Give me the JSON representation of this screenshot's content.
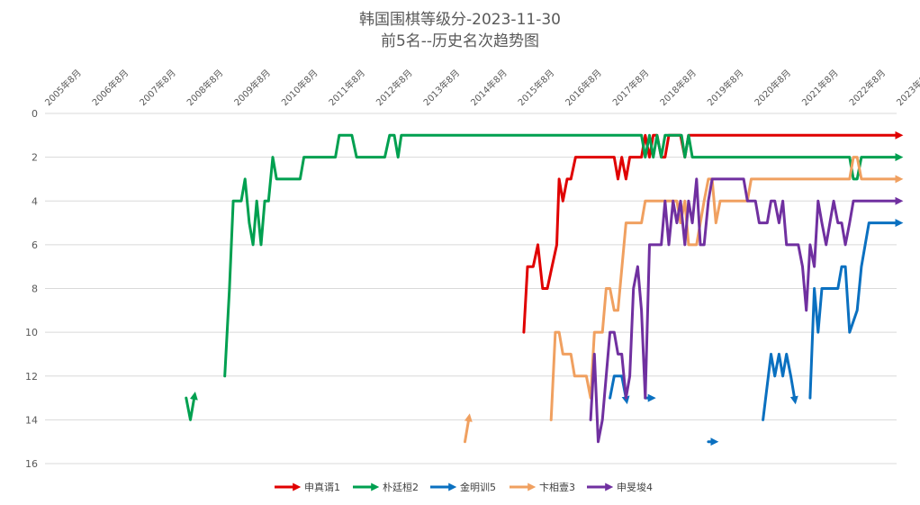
{
  "chart_data": {
    "type": "line",
    "title_line1": "韩国围棋等级分-2023-11-30",
    "title_line2": "前5名--历史名次趋势图",
    "x_ticks": [
      "2005年8月",
      "2006年8月",
      "2007年8月",
      "2008年8月",
      "2009年8月",
      "2010年8月",
      "2011年8月",
      "2012年8月",
      "2013年8月",
      "2014年8月",
      "2015年8月",
      "2016年8月",
      "2017年8月",
      "2018年8月",
      "2019年8月",
      "2020年8月",
      "2021年8月",
      "2022年8月",
      "2023年8月"
    ],
    "xlim": [
      2005.583,
      2023.667
    ],
    "y_ticks": [
      "0",
      "2",
      "4",
      "6",
      "8",
      "10",
      "12",
      "14",
      "16"
    ],
    "ylim": [
      0,
      16
    ],
    "y_reversed": true,
    "grid": true,
    "legend_position": "bottom",
    "series": [
      {
        "name": "申真谞1",
        "color": "#e00000",
        "segments": [
          [
            [
              2015.75,
              10
            ],
            [
              2015.83,
              7
            ],
            [
              2015.95,
              7
            ],
            [
              2016.05,
              6
            ],
            [
              2016.15,
              8
            ],
            [
              2016.25,
              8
            ],
            [
              2016.35,
              7
            ],
            [
              2016.45,
              6
            ],
            [
              2016.5,
              3
            ],
            [
              2016.58,
              4
            ],
            [
              2016.67,
              3
            ],
            [
              2016.75,
              3
            ],
            [
              2016.85,
              2
            ],
            [
              2017.5,
              2
            ],
            [
              2017.67,
              2
            ],
            [
              2017.75,
              3
            ],
            [
              2017.83,
              2
            ],
            [
              2017.92,
              3
            ],
            [
              2018,
              2
            ],
            [
              2018.25,
              2
            ],
            [
              2018.33,
              1
            ],
            [
              2018.42,
              2
            ],
            [
              2018.5,
              1
            ],
            [
              2018.58,
              1
            ],
            [
              2018.67,
              2
            ],
            [
              2018.75,
              2
            ],
            [
              2018.83,
              1
            ],
            [
              2019.08,
              1
            ],
            [
              2019.17,
              2
            ],
            [
              2019.25,
              1
            ],
            [
              2023.67,
              1
            ]
          ]
        ]
      },
      {
        "name": "朴廷桓2",
        "color": "#00a050",
        "segments": [
          [
            [
              2008.58,
              13
            ],
            [
              2008.67,
              14
            ],
            [
              2008.75,
              13
            ]
          ],
          [
            [
              2009.4,
              12
            ],
            [
              2009.5,
              8
            ],
            [
              2009.58,
              4
            ],
            [
              2009.75,
              4
            ],
            [
              2009.83,
              3
            ],
            [
              2009.92,
              5
            ],
            [
              2010,
              6
            ],
            [
              2010.08,
              4
            ],
            [
              2010.17,
              6
            ],
            [
              2010.25,
              4
            ],
            [
              2010.33,
              4
            ],
            [
              2010.42,
              2
            ],
            [
              2010.5,
              3
            ],
            [
              2011,
              3
            ],
            [
              2011.08,
              2
            ],
            [
              2011.75,
              2
            ],
            [
              2011.83,
              1
            ],
            [
              2012.1,
              1
            ],
            [
              2012.2,
              2
            ],
            [
              2012.8,
              2
            ],
            [
              2012.9,
              1
            ],
            [
              2013,
              1
            ],
            [
              2013.08,
              2
            ],
            [
              2013.15,
              1
            ],
            [
              2018.25,
              1
            ],
            [
              2018.33,
              2
            ],
            [
              2018.42,
              1
            ],
            [
              2018.5,
              2
            ],
            [
              2018.58,
              1
            ],
            [
              2018.67,
              2
            ],
            [
              2018.75,
              1
            ],
            [
              2019.1,
              1
            ],
            [
              2019.17,
              2
            ],
            [
              2019.25,
              1
            ],
            [
              2019.33,
              2
            ],
            [
              2022.67,
              2
            ],
            [
              2022.75,
              3
            ],
            [
              2022.83,
              3
            ],
            [
              2022.92,
              2
            ],
            [
              2023.67,
              2
            ]
          ]
        ]
      },
      {
        "name": "金明训5",
        "color": "#0a70c0",
        "segments": [
          [
            [
              2017.58,
              13
            ],
            [
              2017.67,
              12
            ],
            [
              2017.83,
              12
            ],
            [
              2017.92,
              13
            ]
          ],
          [
            [
              2018.33,
              13
            ],
            [
              2018.42,
              13
            ]
          ],
          [
            [
              2019.67,
              15
            ],
            [
              2019.75,
              15
            ]
          ],
          [
            [
              2020.83,
              14
            ],
            [
              2021,
              11
            ],
            [
              2021.08,
              12
            ],
            [
              2021.17,
              11
            ],
            [
              2021.25,
              12
            ],
            [
              2021.33,
              11
            ],
            [
              2021.42,
              12
            ],
            [
              2021.5,
              13
            ]
          ],
          [
            [
              2021.83,
              13
            ],
            [
              2021.92,
              8
            ],
            [
              2022,
              10
            ],
            [
              2022.08,
              8
            ],
            [
              2022.42,
              8
            ],
            [
              2022.5,
              7
            ],
            [
              2022.58,
              7
            ],
            [
              2022.67,
              10
            ],
            [
              2022.83,
              9
            ],
            [
              2022.92,
              7
            ],
            [
              2023.08,
              5
            ],
            [
              2023.67,
              5
            ]
          ]
        ]
      },
      {
        "name": "卞相壹3",
        "color": "#f0a060",
        "segments": [
          [
            [
              2014.5,
              15
            ],
            [
              2014.58,
              14
            ]
          ],
          [
            [
              2016.33,
              14
            ],
            [
              2016.42,
              10
            ],
            [
              2016.5,
              10
            ],
            [
              2016.58,
              11
            ],
            [
              2016.75,
              11
            ],
            [
              2016.83,
              12
            ],
            [
              2017.08,
              12
            ],
            [
              2017.17,
              13
            ],
            [
              2017.25,
              10
            ],
            [
              2017.42,
              10
            ],
            [
              2017.5,
              8
            ],
            [
              2017.58,
              8
            ],
            [
              2017.67,
              9
            ],
            [
              2017.75,
              9
            ],
            [
              2017.92,
              5
            ],
            [
              2018.25,
              5
            ],
            [
              2018.33,
              4
            ],
            [
              2019,
              4
            ],
            [
              2019.08,
              5
            ],
            [
              2019.17,
              4
            ],
            [
              2019.25,
              6
            ],
            [
              2019.42,
              6
            ],
            [
              2019.58,
              4
            ],
            [
              2019.67,
              3
            ],
            [
              2019.75,
              3
            ],
            [
              2019.83,
              5
            ],
            [
              2019.92,
              4
            ],
            [
              2020.5,
              4
            ],
            [
              2020.58,
              3
            ],
            [
              2022.67,
              3
            ],
            [
              2022.75,
              2
            ],
            [
              2022.83,
              2
            ],
            [
              2022.92,
              3
            ],
            [
              2023.67,
              3
            ]
          ]
        ]
      },
      {
        "name": "申旻埈4",
        "color": "#7030a0",
        "segments": [
          [
            [
              2017.17,
              14
            ],
            [
              2017.25,
              11
            ],
            [
              2017.33,
              15
            ],
            [
              2017.42,
              14
            ],
            [
              2017.5,
              12
            ],
            [
              2017.58,
              10
            ],
            [
              2017.67,
              10
            ],
            [
              2017.75,
              11
            ],
            [
              2017.83,
              11
            ],
            [
              2017.92,
              13
            ],
            [
              2018,
              12
            ],
            [
              2018.08,
              8
            ],
            [
              2018.17,
              7
            ],
            [
              2018.25,
              9
            ],
            [
              2018.33,
              13
            ],
            [
              2018.42,
              6
            ],
            [
              2018.67,
              6
            ],
            [
              2018.75,
              4
            ],
            [
              2018.83,
              6
            ],
            [
              2018.92,
              4
            ],
            [
              2019,
              5
            ],
            [
              2019.08,
              4
            ],
            [
              2019.17,
              6
            ],
            [
              2019.25,
              4
            ],
            [
              2019.33,
              5
            ],
            [
              2019.42,
              3
            ],
            [
              2019.5,
              6
            ],
            [
              2019.58,
              6
            ],
            [
              2019.67,
              4
            ],
            [
              2019.75,
              3
            ],
            [
              2020.42,
              3
            ],
            [
              2020.5,
              4
            ],
            [
              2020.67,
              4
            ],
            [
              2020.75,
              5
            ],
            [
              2020.92,
              5
            ],
            [
              2021,
              4
            ],
            [
              2021.08,
              4
            ],
            [
              2021.17,
              5
            ],
            [
              2021.25,
              4
            ],
            [
              2021.33,
              6
            ],
            [
              2021.58,
              6
            ],
            [
              2021.67,
              7
            ],
            [
              2021.75,
              9
            ],
            [
              2021.83,
              6
            ],
            [
              2021.92,
              7
            ],
            [
              2022,
              4
            ],
            [
              2022.08,
              5
            ],
            [
              2022.17,
              6
            ],
            [
              2022.25,
              5
            ],
            [
              2022.33,
              4
            ],
            [
              2022.42,
              5
            ],
            [
              2022.5,
              5
            ],
            [
              2022.58,
              6
            ],
            [
              2022.67,
              5
            ],
            [
              2022.75,
              4
            ],
            [
              2023.67,
              4
            ]
          ]
        ]
      }
    ]
  }
}
